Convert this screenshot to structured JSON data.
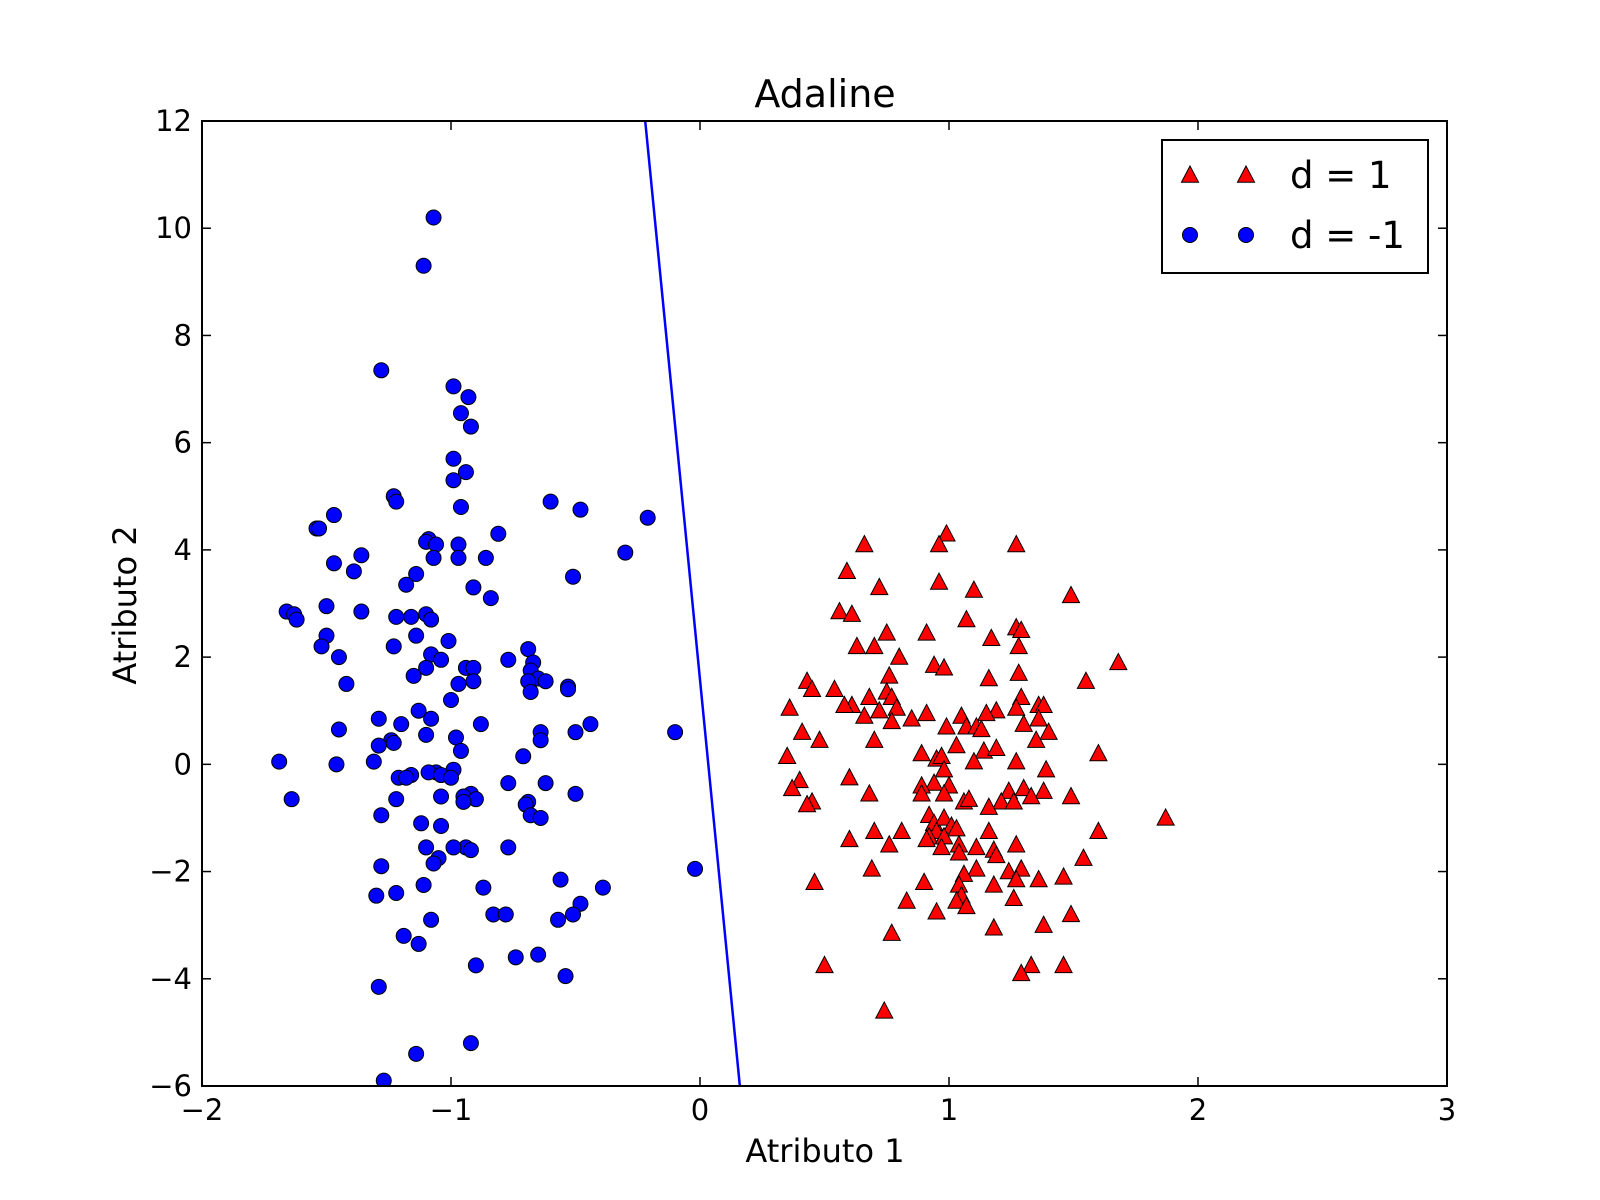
{
  "chart_data": {
    "type": "scatter",
    "title": "Adaline",
    "xlabel": "Atributo 1",
    "ylabel": "Atributo 2",
    "xlim": [
      -2,
      3
    ],
    "ylim": [
      -6,
      12
    ],
    "xticks": [
      -2,
      -1,
      0,
      1,
      2,
      3
    ],
    "xtick_labels": [
      "−2",
      "−1",
      "0",
      "1",
      "2",
      "3"
    ],
    "yticks": [
      -6,
      -4,
      -2,
      0,
      2,
      4,
      6,
      8,
      10,
      12
    ],
    "ytick_labels": [
      "−6",
      "−4",
      "−2",
      "0",
      "2",
      "4",
      "6",
      "8",
      "10",
      "12"
    ],
    "grid": false,
    "legend": {
      "placement": "top-right"
    },
    "decision_boundary": {
      "color": "#0000ff",
      "points": [
        [
          -0.22,
          12
        ],
        [
          0.16,
          -6
        ]
      ]
    },
    "series": [
      {
        "name": "d = 1",
        "marker": "triangle",
        "color": "#ff0000",
        "points": [
          [
            0.66,
            4.1
          ],
          [
            0.99,
            4.3
          ],
          [
            0.96,
            4.1
          ],
          [
            1.27,
            4.1
          ],
          [
            0.59,
            3.6
          ],
          [
            0.96,
            3.4
          ],
          [
            0.72,
            3.3
          ],
          [
            1.1,
            3.25
          ],
          [
            1.49,
            3.15
          ],
          [
            0.56,
            2.85
          ],
          [
            0.61,
            2.8
          ],
          [
            1.07,
            2.7
          ],
          [
            1.27,
            2.55
          ],
          [
            1.29,
            2.5
          ],
          [
            0.75,
            2.45
          ],
          [
            0.91,
            2.45
          ],
          [
            1.17,
            2.35
          ],
          [
            0.63,
            2.2
          ],
          [
            0.7,
            2.2
          ],
          [
            1.28,
            2.2
          ],
          [
            0.8,
            2.0
          ],
          [
            1.68,
            1.9
          ],
          [
            0.94,
            1.85
          ],
          [
            0.98,
            1.8
          ],
          [
            1.28,
            1.7
          ],
          [
            0.76,
            1.65
          ],
          [
            1.16,
            1.6
          ],
          [
            1.55,
            1.55
          ],
          [
            0.43,
            1.55
          ],
          [
            0.45,
            1.4
          ],
          [
            0.54,
            1.4
          ],
          [
            0.75,
            1.35
          ],
          [
            0.68,
            1.25
          ],
          [
            0.77,
            1.25
          ],
          [
            0.61,
            1.1
          ],
          [
            0.58,
            1.1
          ],
          [
            1.29,
            1.25
          ],
          [
            1.36,
            1.1
          ],
          [
            1.38,
            1.1
          ],
          [
            0.36,
            1.05
          ],
          [
            0.72,
            1.0
          ],
          [
            0.79,
            1.05
          ],
          [
            1.27,
            1.05
          ],
          [
            1.19,
            1.0
          ],
          [
            0.91,
            0.95
          ],
          [
            1.05,
            0.9
          ],
          [
            1.15,
            0.95
          ],
          [
            1.36,
            0.85
          ],
          [
            0.85,
            0.85
          ],
          [
            0.66,
            0.9
          ],
          [
            0.77,
            0.8
          ],
          [
            1.3,
            0.75
          ],
          [
            1.07,
            0.7
          ],
          [
            0.99,
            0.7
          ],
          [
            1.11,
            0.7
          ],
          [
            1.13,
            0.65
          ],
          [
            0.41,
            0.6
          ],
          [
            1.4,
            0.6
          ],
          [
            0.7,
            0.45
          ],
          [
            0.48,
            0.45
          ],
          [
            1.35,
            0.45
          ],
          [
            1.03,
            0.35
          ],
          [
            1.14,
            0.25
          ],
          [
            1.19,
            0.3
          ],
          [
            0.89,
            0.2
          ],
          [
            1.6,
            0.2
          ],
          [
            0.35,
            0.15
          ],
          [
            0.95,
            0.1
          ],
          [
            0.97,
            0.15
          ],
          [
            1.27,
            0.05
          ],
          [
            1.1,
            0.05
          ],
          [
            1.39,
            -0.1
          ],
          [
            0.98,
            -0.1
          ],
          [
            0.6,
            -0.25
          ],
          [
            0.4,
            -0.3
          ],
          [
            0.94,
            -0.35
          ],
          [
            0.89,
            -0.4
          ],
          [
            0.37,
            -0.45
          ],
          [
            1.0,
            -0.4
          ],
          [
            1.24,
            -0.5
          ],
          [
            1.3,
            -0.45
          ],
          [
            1.38,
            -0.5
          ],
          [
            0.89,
            -0.55
          ],
          [
            0.98,
            -0.55
          ],
          [
            1.33,
            -0.6
          ],
          [
            0.68,
            -0.55
          ],
          [
            1.49,
            -0.6
          ],
          [
            1.06,
            -0.7
          ],
          [
            1.08,
            -0.65
          ],
          [
            1.21,
            -0.7
          ],
          [
            1.26,
            -0.7
          ],
          [
            1.16,
            -0.8
          ],
          [
            0.45,
            -0.7
          ],
          [
            0.43,
            -0.75
          ],
          [
            1.87,
            -1.0
          ],
          [
            0.92,
            -0.95
          ],
          [
            0.94,
            -1.1
          ],
          [
            0.98,
            -1.0
          ],
          [
            1.01,
            -1.15
          ],
          [
            0.95,
            -1.25
          ],
          [
            1.03,
            -1.2
          ],
          [
            0.7,
            -1.25
          ],
          [
            1.16,
            -1.25
          ],
          [
            0.81,
            -1.25
          ],
          [
            0.92,
            -1.35
          ],
          [
            0.91,
            -1.4
          ],
          [
            0.98,
            -1.35
          ],
          [
            1.6,
            -1.25
          ],
          [
            0.6,
            -1.4
          ],
          [
            0.76,
            -1.5
          ],
          [
            1.04,
            -1.5
          ],
          [
            1.27,
            -1.5
          ],
          [
            0.97,
            -1.55
          ],
          [
            1.11,
            -1.55
          ],
          [
            1.04,
            -1.65
          ],
          [
            1.18,
            -1.6
          ],
          [
            1.19,
            -1.7
          ],
          [
            1.54,
            -1.75
          ],
          [
            0.69,
            -1.95
          ],
          [
            1.11,
            -1.95
          ],
          [
            1.24,
            -2.0
          ],
          [
            1.29,
            -1.95
          ],
          [
            1.06,
            -2.05
          ],
          [
            1.27,
            -2.15
          ],
          [
            1.46,
            -2.1
          ],
          [
            1.36,
            -2.15
          ],
          [
            0.46,
            -2.2
          ],
          [
            0.9,
            -2.2
          ],
          [
            1.04,
            -2.25
          ],
          [
            1.18,
            -2.25
          ],
          [
            1.05,
            -2.45
          ],
          [
            1.26,
            -2.5
          ],
          [
            0.83,
            -2.55
          ],
          [
            1.03,
            -2.55
          ],
          [
            1.07,
            -2.65
          ],
          [
            0.95,
            -2.75
          ],
          [
            1.49,
            -2.8
          ],
          [
            1.38,
            -3.0
          ],
          [
            1.18,
            -3.05
          ],
          [
            0.77,
            -3.15
          ],
          [
            0.5,
            -3.75
          ],
          [
            1.33,
            -3.75
          ],
          [
            1.46,
            -3.75
          ],
          [
            1.29,
            -3.9
          ],
          [
            0.74,
            -4.6
          ]
        ]
      },
      {
        "name": "d = -1",
        "marker": "circle",
        "color": "#0000ff",
        "points": [
          [
            -1.07,
            10.2
          ],
          [
            -1.11,
            9.3
          ],
          [
            -1.28,
            7.35
          ],
          [
            -0.99,
            7.05
          ],
          [
            -0.93,
            6.85
          ],
          [
            -0.96,
            6.55
          ],
          [
            -0.92,
            6.3
          ],
          [
            -0.99,
            5.7
          ],
          [
            -0.94,
            5.45
          ],
          [
            -0.99,
            5.3
          ],
          [
            -1.23,
            5.0
          ],
          [
            -1.22,
            4.9
          ],
          [
            -0.6,
            4.9
          ],
          [
            -0.96,
            4.8
          ],
          [
            -0.48,
            4.75
          ],
          [
            -1.47,
            4.65
          ],
          [
            -0.21,
            4.6
          ],
          [
            -1.54,
            4.4
          ],
          [
            -1.53,
            4.4
          ],
          [
            -0.81,
            4.3
          ],
          [
            -1.09,
            4.2
          ],
          [
            -1.1,
            4.15
          ],
          [
            -1.06,
            4.1
          ],
          [
            -0.97,
            4.1
          ],
          [
            -0.3,
            3.95
          ],
          [
            -1.36,
            3.9
          ],
          [
            -0.97,
            3.85
          ],
          [
            -1.07,
            3.85
          ],
          [
            -0.86,
            3.85
          ],
          [
            -1.47,
            3.75
          ],
          [
            -1.39,
            3.6
          ],
          [
            -1.14,
            3.55
          ],
          [
            -0.51,
            3.5
          ],
          [
            -1.18,
            3.35
          ],
          [
            -0.91,
            3.3
          ],
          [
            -0.84,
            3.1
          ],
          [
            -1.5,
            2.95
          ],
          [
            -1.66,
            2.85
          ],
          [
            -1.63,
            2.8
          ],
          [
            -1.36,
            2.85
          ],
          [
            -1.1,
            2.8
          ],
          [
            -1.22,
            2.75
          ],
          [
            -1.16,
            2.75
          ],
          [
            -1.62,
            2.7
          ],
          [
            -1.08,
            2.7
          ],
          [
            -1.5,
            2.4
          ],
          [
            -1.14,
            2.4
          ],
          [
            -1.52,
            2.2
          ],
          [
            -1.23,
            2.2
          ],
          [
            -1.01,
            2.3
          ],
          [
            -0.69,
            2.15
          ],
          [
            -1.08,
            2.05
          ],
          [
            -1.04,
            1.95
          ],
          [
            -1.45,
            2.0
          ],
          [
            -0.77,
            1.95
          ],
          [
            -0.67,
            1.9
          ],
          [
            -0.94,
            1.8
          ],
          [
            -0.91,
            1.8
          ],
          [
            -1.1,
            1.8
          ],
          [
            -1.15,
            1.65
          ],
          [
            -0.68,
            1.75
          ],
          [
            -0.65,
            1.6
          ],
          [
            -0.69,
            1.55
          ],
          [
            -0.62,
            1.55
          ],
          [
            -0.91,
            1.55
          ],
          [
            -0.97,
            1.5
          ],
          [
            -1.42,
            1.5
          ],
          [
            -0.53,
            1.45
          ],
          [
            -0.53,
            1.4
          ],
          [
            -0.68,
            1.35
          ],
          [
            -1.0,
            1.2
          ],
          [
            -1.13,
            1.0
          ],
          [
            -1.29,
            0.85
          ],
          [
            -1.08,
            0.85
          ],
          [
            -0.88,
            0.75
          ],
          [
            -1.45,
            0.65
          ],
          [
            -1.2,
            0.75
          ],
          [
            -0.44,
            0.75
          ],
          [
            -0.5,
            0.6
          ],
          [
            -0.64,
            0.6
          ],
          [
            -0.1,
            0.6
          ],
          [
            -0.64,
            0.45
          ],
          [
            -1.1,
            0.55
          ],
          [
            -0.98,
            0.5
          ],
          [
            -1.24,
            0.45
          ],
          [
            -1.23,
            0.4
          ],
          [
            -1.29,
            0.35
          ],
          [
            -0.96,
            0.25
          ],
          [
            -0.71,
            0.15
          ],
          [
            -1.69,
            0.05
          ],
          [
            -1.31,
            0.05
          ],
          [
            -1.46,
            0.0
          ],
          [
            -0.99,
            -0.1
          ],
          [
            -1.06,
            -0.15
          ],
          [
            -1.09,
            -0.15
          ],
          [
            -1.04,
            -0.2
          ],
          [
            -1.16,
            -0.2
          ],
          [
            -1.21,
            -0.25
          ],
          [
            -1.18,
            -0.25
          ],
          [
            -1.0,
            -0.25
          ],
          [
            -0.77,
            -0.35
          ],
          [
            -0.62,
            -0.35
          ],
          [
            -0.92,
            -0.55
          ],
          [
            -0.95,
            -0.6
          ],
          [
            -0.9,
            -0.65
          ],
          [
            -0.5,
            -0.55
          ],
          [
            -1.04,
            -0.6
          ],
          [
            -0.95,
            -0.7
          ],
          [
            -1.64,
            -0.65
          ],
          [
            -1.22,
            -0.65
          ],
          [
            -0.69,
            -0.7
          ],
          [
            -0.7,
            -0.75
          ],
          [
            -0.68,
            -0.95
          ],
          [
            -0.64,
            -1.0
          ],
          [
            -1.28,
            -0.95
          ],
          [
            -1.12,
            -1.1
          ],
          [
            -1.04,
            -1.15
          ],
          [
            -0.77,
            -1.55
          ],
          [
            -1.1,
            -1.55
          ],
          [
            -0.94,
            -1.55
          ],
          [
            -0.92,
            -1.6
          ],
          [
            -0.99,
            -1.55
          ],
          [
            -1.05,
            -1.75
          ],
          [
            -1.07,
            -1.85
          ],
          [
            -1.28,
            -1.9
          ],
          [
            -0.02,
            -1.95
          ],
          [
            -0.56,
            -2.15
          ],
          [
            -1.11,
            -2.25
          ],
          [
            -0.87,
            -2.3
          ],
          [
            -0.39,
            -2.3
          ],
          [
            -1.22,
            -2.4
          ],
          [
            -1.3,
            -2.45
          ],
          [
            -0.48,
            -2.6
          ],
          [
            -0.83,
            -2.8
          ],
          [
            -0.78,
            -2.8
          ],
          [
            -0.51,
            -2.8
          ],
          [
            -0.57,
            -2.9
          ],
          [
            -1.08,
            -2.9
          ],
          [
            -1.19,
            -3.2
          ],
          [
            -1.13,
            -3.35
          ],
          [
            -0.9,
            -3.75
          ],
          [
            -0.74,
            -3.6
          ],
          [
            -0.65,
            -3.55
          ],
          [
            -0.54,
            -3.95
          ],
          [
            -1.29,
            -4.15
          ],
          [
            -0.92,
            -5.2
          ],
          [
            -1.14,
            -5.4
          ],
          [
            -1.27,
            -5.9
          ]
        ]
      }
    ]
  }
}
